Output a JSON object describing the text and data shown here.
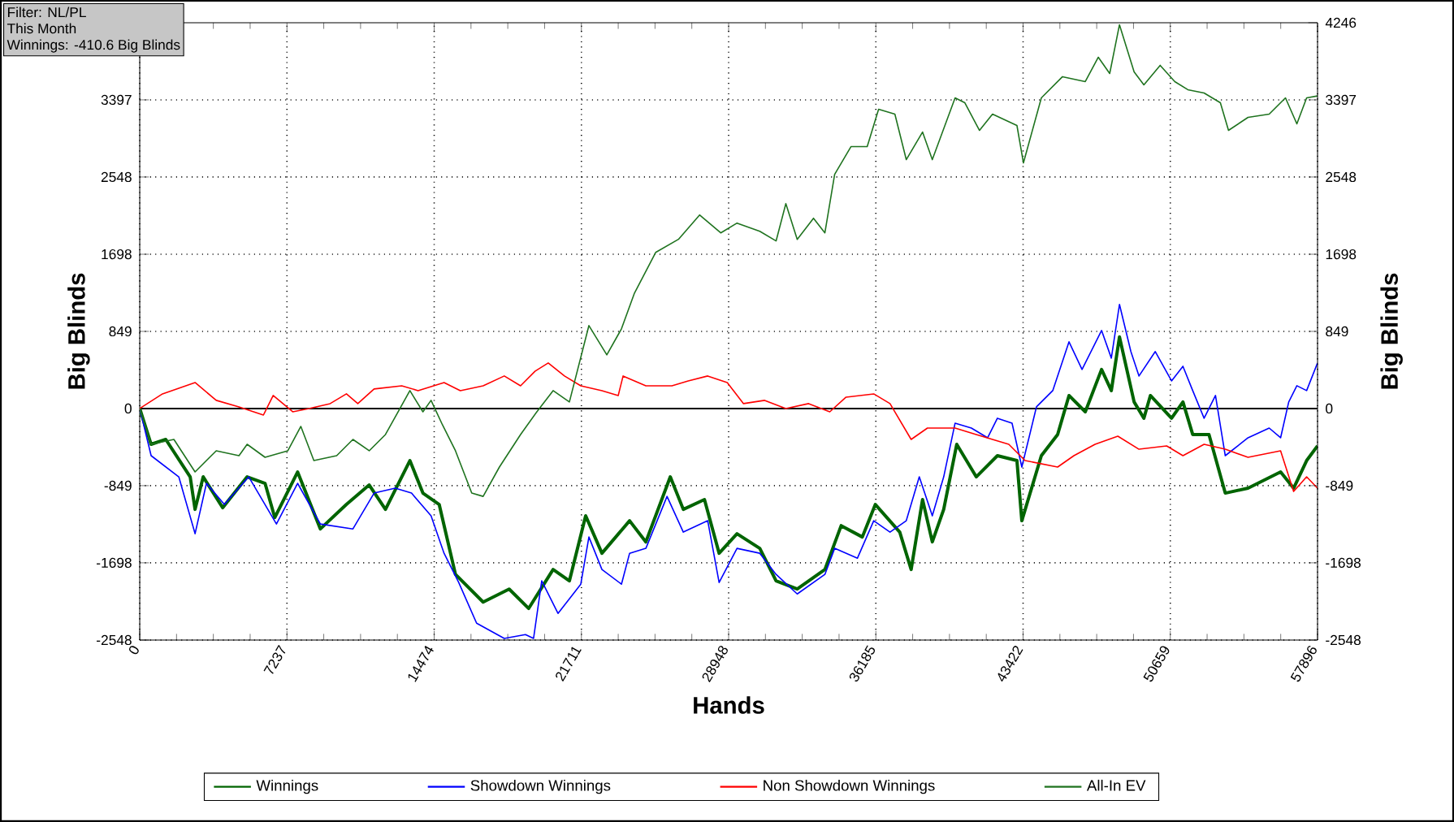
{
  "chart_data": {
    "type": "line",
    "xlabel": "Hands",
    "ylabel": "Big Blinds",
    "y2label": "Big Blinds",
    "annotations": [
      "Filter: NL/PL",
      "This Month",
      "Winnings: -410.6 Big Blinds"
    ],
    "xlim": [
      0,
      57896
    ],
    "xticks": [
      0,
      7237,
      14474,
      21711,
      28948,
      36185,
      43422,
      50659,
      57896
    ],
    "ylim": [
      -2548,
      4246
    ],
    "yticks": [
      -2548,
      -1698,
      -849,
      0,
      849,
      1698,
      2548,
      3397
    ],
    "y2lim": [
      -2548,
      4246
    ],
    "y2ticks": [
      -2548,
      -1698,
      -849,
      0,
      849,
      1698,
      2548,
      3397,
      4246
    ],
    "grid": true,
    "legend": "bottom",
    "ref_lines": [
      {
        "axis": "y",
        "value": 0,
        "color": "#000000"
      }
    ],
    "series": [
      {
        "name": "Winnings",
        "color": "#006400",
        "x": [
          0,
          560,
          1280,
          2480,
          2720,
          3120,
          4080,
          5280,
          6160,
          6640,
          7760,
          8880,
          10160,
          11280,
          12080,
          13280,
          13920,
          14720,
          15520,
          16880,
          18160,
          19120,
          20320,
          21120,
          21920,
          22720,
          24080,
          24880,
          26080,
          26720,
          27760,
          28480,
          29360,
          30480,
          31280,
          32320,
          33680,
          34480,
          35520,
          36160,
          37360,
          37920,
          38480,
          38960,
          39520,
          40160,
          41120,
          42160,
          43120,
          43360,
          44320,
          45120,
          45680,
          46480,
          47280,
          47760,
          48160,
          48880,
          49360,
          49680,
          50720,
          51280,
          51760,
          52560,
          53360,
          54480,
          56080,
          56720,
          57360,
          57896
        ],
        "values": [
          0,
          -394,
          -340,
          -752,
          -1110,
          -752,
          -1092,
          -752,
          -823,
          -1200,
          -698,
          -1325,
          -1056,
          -841,
          -1110,
          -573,
          -931,
          -1056,
          -1826,
          -2130,
          -1987,
          -2200,
          -1772,
          -1897,
          -1181,
          -1593,
          -1235,
          -1468,
          -752,
          -1110,
          -1002,
          -1593,
          -1378,
          -1539,
          -1897,
          -1987,
          -1772,
          -1289,
          -1414,
          -1056,
          -1360,
          -1772,
          -1002,
          -1468,
          -1110,
          -394,
          -752,
          -519,
          -573,
          -1235,
          -519,
          -286,
          143,
          -36,
          430,
          197,
          788,
          72,
          -107,
          143,
          -107,
          72,
          -286,
          -286,
          -931,
          -877,
          -698,
          -877,
          -573,
          -411
        ]
      },
      {
        "name": "Showdown Winnings",
        "color": "#0000ff",
        "x": [
          0,
          560,
          1920,
          2720,
          3280,
          4160,
          5360,
          6720,
          7760,
          8880,
          10480,
          11520,
          12560,
          13360,
          14320,
          14960,
          15680,
          16560,
          17920,
          18960,
          19360,
          19760,
          20560,
          21680,
          22080,
          22720,
          23680,
          24080,
          24880,
          25920,
          26720,
          27920,
          28480,
          29360,
          30480,
          31280,
          32320,
          33680,
          34160,
          35280,
          36080,
          36880,
          37680,
          38320,
          38960,
          39520,
          40080,
          40880,
          41680,
          42160,
          42880,
          43360,
          44080,
          44880,
          45680,
          46320,
          47280,
          47760,
          48160,
          48720,
          49120,
          49920,
          50720,
          51280,
          51760,
          52320,
          52880,
          53360,
          54480,
          55520,
          56080,
          56480,
          56880,
          57360,
          57896
        ],
        "values": [
          0,
          -519,
          -752,
          -1378,
          -823,
          -1056,
          -752,
          -1271,
          -823,
          -1271,
          -1325,
          -931,
          -877,
          -931,
          -1181,
          -1593,
          -1915,
          -2363,
          -2530,
          -2488,
          -2530,
          -1897,
          -2255,
          -1933,
          -1414,
          -1772,
          -1933,
          -1593,
          -1539,
          -967,
          -1360,
          -1235,
          -1915,
          -1539,
          -1593,
          -1826,
          -2041,
          -1826,
          -1539,
          -1647,
          -1235,
          -1360,
          -1235,
          -752,
          -1181,
          -752,
          -161,
          -215,
          -322,
          -107,
          -161,
          -644,
          18,
          197,
          734,
          430,
          859,
          555,
          1146,
          627,
          358,
          627,
          304,
          465,
          197,
          -107,
          143,
          -519,
          -322,
          -215,
          -322,
          72,
          251,
          197,
          501
        ]
      },
      {
        "name": "Non Showdown Winnings",
        "color": "#ff0000",
        "x": [
          0,
          1120,
          2720,
          3760,
          4880,
          6080,
          6560,
          7520,
          8320,
          9360,
          10160,
          10720,
          11520,
          12880,
          13680,
          14960,
          15760,
          16880,
          17920,
          18720,
          19440,
          20080,
          20880,
          21680,
          22720,
          23520,
          23760,
          24880,
          26160,
          26960,
          27920,
          28880,
          29680,
          30720,
          31760,
          32880,
          33920,
          34720,
          36080,
          36880,
          37920,
          38720,
          40080,
          41120,
          42720,
          43520,
          45120,
          45920,
          46960,
          48080,
          49120,
          50480,
          51280,
          52320,
          53360,
          54480,
          56080,
          56720,
          57360,
          57896
        ],
        "values": [
          0,
          161,
          286,
          90,
          18,
          -72,
          143,
          -36,
          0,
          54,
          161,
          54,
          215,
          250,
          197,
          286,
          197,
          250,
          358,
          250,
          412,
          501,
          358,
          250,
          197,
          143,
          358,
          250,
          250,
          304,
          358,
          286,
          54,
          90,
          0,
          54,
          -36,
          125,
          161,
          54,
          -340,
          -215,
          -215,
          -286,
          -394,
          -573,
          -644,
          -519,
          -394,
          -304,
          -448,
          -412,
          -519,
          -394,
          -448,
          -537,
          -465,
          -913,
          -752,
          -877
        ]
      },
      {
        "name": "All-In EV",
        "color": "#1f731f",
        "x": [
          0,
          560,
          1680,
          2720,
          3760,
          4880,
          5280,
          6160,
          7280,
          7920,
          8560,
          9680,
          10480,
          11280,
          12080,
          13280,
          13920,
          14320,
          14880,
          15520,
          16320,
          16880,
          17680,
          18720,
          19520,
          20320,
          21120,
          22080,
          22960,
          23680,
          24320,
          25360,
          26480,
          27520,
          28560,
          29360,
          30480,
          31280,
          31760,
          32320,
          33120,
          33680,
          34160,
          34960,
          35760,
          36320,
          37120,
          37680,
          38480,
          38960,
          40080,
          40560,
          41280,
          41920,
          43120,
          43440,
          44320,
          45360,
          46480,
          47120,
          47680,
          48160,
          48880,
          49360,
          50160,
          50880,
          51520,
          52320,
          53120,
          53520,
          54480,
          55520,
          56320,
          56880,
          57360,
          57896
        ],
        "values": [
          0,
          -394,
          -340,
          -698,
          -465,
          -519,
          -394,
          -537,
          -465,
          -197,
          -573,
          -519,
          -340,
          -465,
          -286,
          197,
          -36,
          90,
          -179,
          -465,
          -931,
          -967,
          -644,
          -286,
          -36,
          197,
          72,
          913,
          591,
          877,
          1271,
          1718,
          1862,
          2130,
          1933,
          2041,
          1951,
          1844,
          2255,
          1862,
          2094,
          1933,
          2578,
          2882,
          2882,
          3294,
          3240,
          2739,
          3043,
          2739,
          3419,
          3365,
          3061,
          3240,
          3115,
          2703,
          3419,
          3652,
          3598,
          3866,
          3687,
          4224,
          3705,
          3562,
          3777,
          3598,
          3509,
          3473,
          3365,
          3061,
          3204,
          3240,
          3419,
          3133,
          3419,
          3440
        ]
      }
    ]
  }
}
